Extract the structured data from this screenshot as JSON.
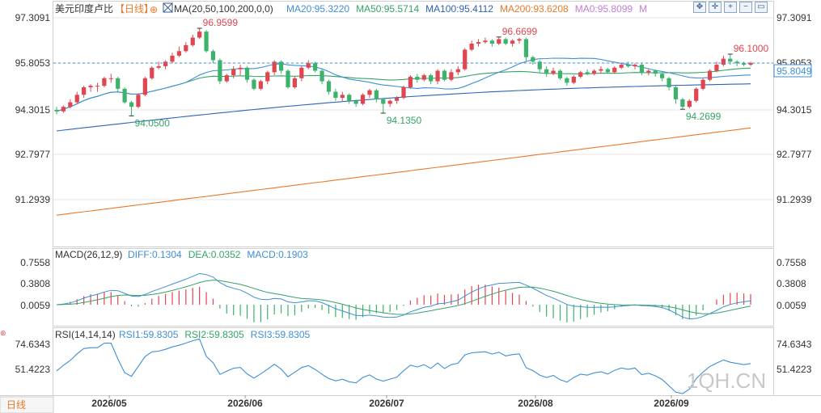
{
  "header": {
    "symbol": "美元印度卢比",
    "period": "【日线】",
    "ma_text": "MA(20,50,100,200,0,0)",
    "ma_items": [
      {
        "text": "MA20:95.3220",
        "color": "#3e8fd6"
      },
      {
        "text": "MA50:95.5714",
        "color": "#35a36a"
      },
      {
        "text": "MA100:95.4112",
        "color": "#2e63b5"
      },
      {
        "text": "MA200:93.6208",
        "color": "#e8792a"
      },
      {
        "text": "MA0:95.8099",
        "color": "#c27cd6"
      },
      {
        "text": "M",
        "color": "#c27cd6"
      }
    ]
  },
  "toolbar": {
    "icons": [
      "move-icon",
      "crosshair-icon",
      "zoom-in-icon",
      "zoom-out-icon",
      "reset-icon"
    ]
  },
  "colors": {
    "up": "#e0464f",
    "down": "#3bb36b",
    "ma20": "#3e8fd6",
    "ma50": "#35a36a",
    "ma100": "#2e63b5",
    "ma200": "#e8792a",
    "ref": "#3e8fd6",
    "axis_text": "#333333",
    "grid": "#e6e6e6",
    "macd_label": "#3e8fd6",
    "macd_dea": "#35a36a",
    "hl_text": "#e0464f",
    "lo_text": "#35a36a"
  },
  "price_axis": {
    "ticks": [
      "97.3091",
      "95.8053",
      "94.3015",
      "92.7977",
      "91.2939"
    ],
    "current": "95.8049"
  },
  "macd_panel": {
    "title": "MACD(26,12,9)",
    "items": [
      {
        "text": "DIFF:0.1304",
        "color": "#3e8fd6"
      },
      {
        "text": "DEA:0.0352",
        "color": "#35a36a"
      },
      {
        "text": "MACD:0.1903",
        "color": "#3e8fd6"
      }
    ],
    "ticks": [
      "0.7558",
      "0.3808",
      "0.0059"
    ]
  },
  "rsi_panel": {
    "title": "RSI(14,14,14)",
    "items": [
      {
        "text": "RSI1:59.8305",
        "color": "#3e8fd6"
      },
      {
        "text": "RSI2:59.8305",
        "color": "#35a36a"
      },
      {
        "text": "RSI3:59.8305",
        "color": "#3e8fd6"
      }
    ],
    "ticks": [
      "74.6343",
      "51.4223"
    ]
  },
  "x_axis": {
    "labels": [
      "2026/05",
      "2026/06",
      "2026/07",
      "2026/08",
      "2026/09"
    ]
  },
  "footer": {
    "period_tab": "日线"
  },
  "watermark": "1QH.CN",
  "chart_data": {
    "type": "candlestick",
    "title": "美元印度卢比 日线",
    "y_ticks": [
      97.3091,
      95.8053,
      94.3015,
      92.7977,
      91.2939
    ],
    "x_labels": [
      "2026/05",
      "2026/06",
      "2026/07",
      "2026/08",
      "2026/09"
    ],
    "annotations": [
      {
        "label": "96.9599",
        "type": "high"
      },
      {
        "label": "94.0500",
        "type": "low"
      },
      {
        "label": "94.1350",
        "type": "low"
      },
      {
        "label": "96.6699",
        "type": "high"
      },
      {
        "label": "94.2699",
        "type": "low"
      },
      {
        "label": "96.1000",
        "type": "high"
      }
    ],
    "current_price": 95.8049,
    "candles": [
      [
        94.25,
        94.2,
        94.35,
        94.1
      ],
      [
        94.2,
        94.35,
        94.4,
        94.15
      ],
      [
        94.35,
        94.5,
        94.6,
        94.3
      ],
      [
        94.5,
        94.75,
        94.85,
        94.45
      ],
      [
        94.75,
        95.0,
        95.05,
        94.65
      ],
      [
        95.0,
        95.05,
        95.1,
        94.85
      ],
      [
        95.05,
        95.05,
        95.15,
        94.85
      ],
      [
        95.05,
        95.3,
        95.35,
        95.0
      ],
      [
        95.3,
        95.3,
        95.45,
        95.15
      ],
      [
        95.3,
        94.95,
        95.35,
        94.85
      ],
      [
        94.95,
        94.5,
        95.0,
        94.45
      ],
      [
        94.5,
        94.35,
        94.55,
        94.05
      ],
      [
        94.35,
        94.75,
        94.8,
        94.3
      ],
      [
        94.75,
        95.3,
        95.35,
        94.7
      ],
      [
        95.3,
        95.65,
        95.7,
        95.25
      ],
      [
        95.65,
        95.7,
        95.85,
        95.6
      ],
      [
        95.7,
        95.85,
        95.9,
        95.6
      ],
      [
        95.85,
        96.05,
        96.15,
        95.8
      ],
      [
        96.05,
        96.2,
        96.35,
        96.0
      ],
      [
        96.2,
        96.4,
        96.5,
        96.15
      ],
      [
        96.4,
        96.65,
        96.75,
        96.35
      ],
      [
        96.65,
        96.85,
        96.96,
        96.6
      ],
      [
        96.85,
        96.2,
        96.9,
        96.15
      ],
      [
        96.2,
        95.9,
        96.25,
        95.8
      ],
      [
        95.9,
        95.2,
        95.95,
        95.1
      ],
      [
        95.2,
        95.4,
        95.45,
        95.15
      ],
      [
        95.4,
        95.6,
        95.7,
        95.3
      ],
      [
        95.6,
        95.65,
        95.75,
        95.4
      ],
      [
        95.65,
        95.25,
        95.7,
        95.15
      ],
      [
        95.25,
        94.95,
        95.3,
        94.9
      ],
      [
        94.95,
        95.2,
        95.25,
        94.9
      ],
      [
        95.2,
        95.5,
        95.55,
        95.1
      ],
      [
        95.5,
        95.85,
        95.9,
        95.4
      ],
      [
        95.85,
        95.55,
        95.9,
        95.45
      ],
      [
        95.55,
        95.0,
        95.6,
        94.95
      ],
      [
        95.0,
        95.3,
        95.35,
        94.95
      ],
      [
        95.3,
        95.65,
        95.7,
        95.2
      ],
      [
        95.65,
        95.8,
        95.9,
        95.6
      ],
      [
        95.8,
        95.55,
        95.85,
        95.5
      ],
      [
        95.55,
        95.2,
        95.6,
        95.1
      ],
      [
        95.2,
        94.85,
        95.25,
        94.75
      ],
      [
        94.85,
        94.65,
        94.95,
        94.55
      ],
      [
        94.65,
        94.75,
        94.85,
        94.55
      ],
      [
        94.75,
        94.55,
        94.8,
        94.45
      ],
      [
        94.55,
        94.45,
        94.6,
        94.35
      ],
      [
        94.45,
        94.75,
        94.8,
        94.4
      ],
      [
        94.75,
        94.9,
        94.95,
        94.65
      ],
      [
        94.9,
        94.6,
        94.95,
        94.5
      ],
      [
        94.6,
        94.45,
        94.65,
        94.14
      ],
      [
        94.45,
        94.55,
        94.6,
        94.35
      ],
      [
        94.55,
        94.65,
        94.7,
        94.45
      ],
      [
        94.65,
        95.0,
        95.05,
        94.6
      ],
      [
        95.0,
        95.35,
        95.4,
        94.95
      ],
      [
        95.35,
        95.25,
        95.45,
        95.15
      ],
      [
        95.25,
        95.4,
        95.45,
        95.2
      ],
      [
        95.4,
        95.2,
        95.45,
        95.1
      ],
      [
        95.2,
        95.55,
        95.6,
        95.1
      ],
      [
        95.55,
        95.25,
        95.6,
        95.2
      ],
      [
        95.25,
        95.5,
        95.6,
        95.2
      ],
      [
        95.5,
        95.6,
        95.7,
        95.4
      ],
      [
        95.6,
        96.25,
        96.3,
        95.55
      ],
      [
        96.25,
        96.45,
        96.55,
        96.2
      ],
      [
        96.45,
        96.5,
        96.6,
        96.35
      ],
      [
        96.5,
        96.55,
        96.65,
        96.45
      ],
      [
        96.55,
        96.45,
        96.6,
        96.35
      ],
      [
        96.45,
        96.6,
        96.67,
        96.4
      ],
      [
        96.6,
        96.45,
        96.65,
        96.4
      ],
      [
        96.45,
        96.55,
        96.6,
        96.35
      ],
      [
        96.55,
        96.6,
        96.65,
        96.45
      ],
      [
        96.6,
        96.0,
        96.65,
        95.85
      ],
      [
        96.0,
        95.85,
        96.05,
        95.75
      ],
      [
        95.85,
        95.6,
        95.9,
        95.5
      ],
      [
        95.6,
        95.45,
        95.7,
        95.35
      ],
      [
        95.45,
        95.55,
        95.65,
        95.4
      ],
      [
        95.55,
        95.3,
        95.6,
        95.25
      ],
      [
        95.3,
        95.15,
        95.35,
        95.05
      ],
      [
        95.15,
        95.35,
        95.4,
        95.1
      ],
      [
        95.35,
        95.5,
        95.55,
        95.3
      ],
      [
        95.5,
        95.45,
        95.6,
        95.4
      ],
      [
        95.45,
        95.55,
        95.6,
        95.4
      ],
      [
        95.55,
        95.6,
        95.7,
        95.45
      ],
      [
        95.6,
        95.5,
        95.65,
        95.45
      ],
      [
        95.5,
        95.65,
        95.7,
        95.45
      ],
      [
        95.65,
        95.75,
        95.8,
        95.6
      ],
      [
        95.75,
        95.7,
        95.85,
        95.65
      ],
      [
        95.7,
        95.75,
        95.8,
        95.6
      ],
      [
        95.75,
        95.5,
        95.8,
        95.4
      ],
      [
        95.5,
        95.55,
        95.6,
        95.4
      ],
      [
        95.55,
        95.45,
        95.6,
        95.35
      ],
      [
        95.45,
        95.3,
        95.5,
        95.2
      ],
      [
        95.3,
        95.0,
        95.35,
        94.9
      ],
      [
        95.0,
        94.6,
        95.05,
        94.45
      ],
      [
        94.6,
        94.35,
        94.65,
        94.27
      ],
      [
        94.35,
        94.55,
        94.6,
        94.3
      ],
      [
        94.55,
        94.95,
        95.0,
        94.5
      ],
      [
        94.95,
        95.25,
        95.3,
        94.9
      ],
      [
        95.25,
        95.55,
        95.6,
        95.2
      ],
      [
        95.55,
        95.75,
        95.85,
        95.5
      ],
      [
        95.75,
        95.95,
        96.05,
        95.7
      ],
      [
        95.95,
        95.85,
        96.1,
        95.75
      ],
      [
        95.85,
        95.8,
        95.9,
        95.7
      ],
      [
        95.8,
        95.75,
        95.85,
        95.7
      ],
      [
        95.75,
        95.8049,
        95.85,
        95.7
      ]
    ]
  }
}
